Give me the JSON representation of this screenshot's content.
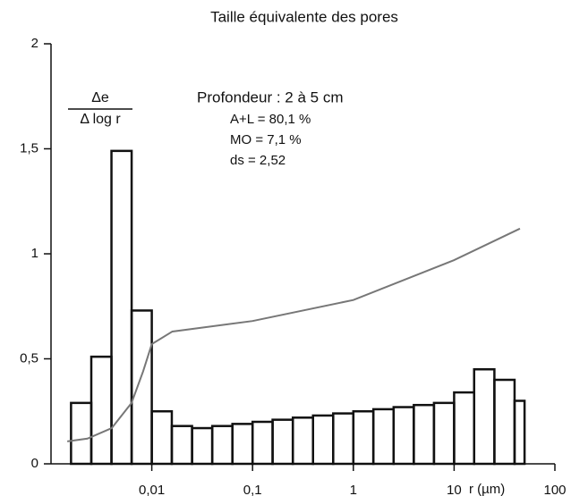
{
  "chart_data": {
    "type": "histogram",
    "title": "Taille équivalente des pores",
    "ylabel_top": "Δe",
    "ylabel_bottom": "Δ log r",
    "xlabel": "r (µm)",
    "annotations": [
      "Profondeur : 2 à 5 cm",
      "A+L = 80,1 %",
      "MO = 7,1 %",
      "ds = 2,52"
    ],
    "xlog": true,
    "xlim": [
      0.001,
      100
    ],
    "xticks": [
      {
        "value": 0.01,
        "label": "0,01"
      },
      {
        "value": 0.1,
        "label": "0,1"
      },
      {
        "value": 1,
        "label": "1"
      },
      10,
      100
    ],
    "ylim": [
      0,
      2
    ],
    "yticks": [
      0,
      {
        "value": 0.5,
        "label": "0,5"
      },
      1,
      {
        "value": 1.5,
        "label": "1,5"
      },
      2
    ],
    "bins": [
      0.00158,
      0.00251,
      0.00398,
      0.00631,
      0.01,
      0.0158,
      0.0251,
      0.0398,
      0.0631,
      0.1,
      0.158,
      0.251,
      0.398,
      0.631,
      1,
      1.58,
      2.51,
      3.98,
      6.31,
      10,
      15.8,
      25.1,
      39.8,
      50
    ],
    "counts": [
      0.29,
      0.51,
      1.49,
      0.73,
      0.25,
      0.18,
      0.17,
      0.18,
      0.19,
      0.2,
      0.21,
      0.22,
      0.23,
      0.24,
      0.25,
      0.26,
      0.27,
      0.28,
      0.29,
      0.34,
      0.45,
      0.4,
      0.3
    ],
    "color": "#111111",
    "curve": {
      "type": "line",
      "color": "#777777",
      "x": [
        0.00145,
        0.0023,
        0.004,
        0.0063,
        0.0082,
        0.01,
        0.016,
        0.1,
        1,
        10,
        45
      ],
      "values": [
        0.107,
        0.12,
        0.17,
        0.29,
        0.44,
        0.57,
        0.63,
        0.68,
        0.78,
        0.97,
        1.12
      ]
    }
  }
}
